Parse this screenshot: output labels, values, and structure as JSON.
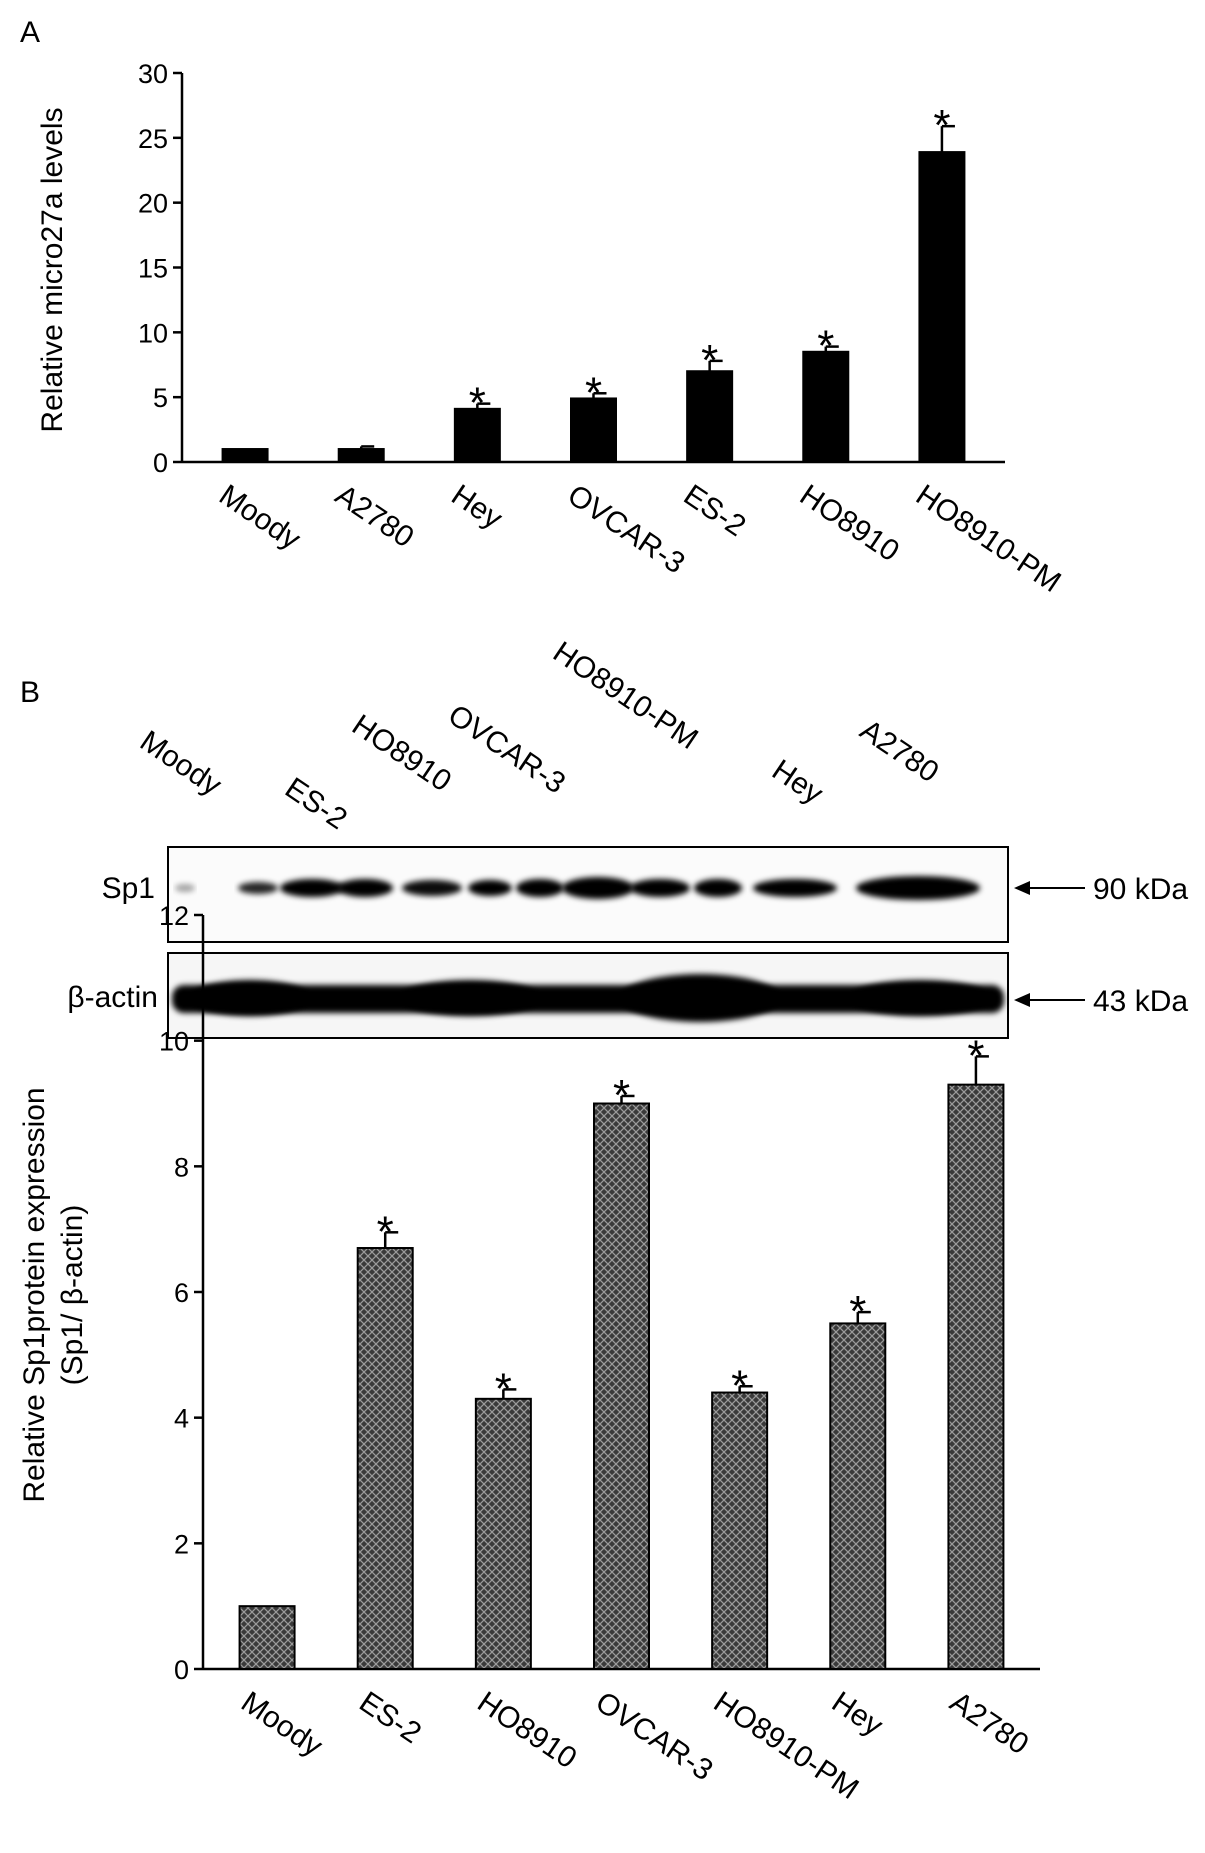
{
  "panels": {
    "a": {
      "letter": "A"
    },
    "b": {
      "letter": "B"
    }
  },
  "blot": {
    "lanes": [
      "Moody",
      "ES-2",
      "HO8910",
      "OVCAR-3",
      "HO8910-PM",
      "Hey",
      "A2780"
    ],
    "rows": [
      {
        "label": "Sp1",
        "size": "90 kDa"
      },
      {
        "label": "β-actin",
        "size": "43 kDa"
      }
    ]
  },
  "colors": {
    "bar_solid": "#000000",
    "bar_hatch_bg": "#3a3a3a",
    "bar_hatch_line": "#9a9a9a"
  },
  "chart_data": [
    {
      "type": "bar",
      "panel": "A",
      "ylabel": "Relative micro27a levels",
      "xlabel": "",
      "ylim": [
        0,
        30
      ],
      "yticks": [
        "0",
        "5",
        "10",
        "15",
        "20",
        "25",
        "30"
      ],
      "categories": [
        "Moody",
        "A2780",
        "Hey",
        "OVCAR-3",
        "ES-2",
        "HO8910",
        "HO8910-PM"
      ],
      "values": [
        1.0,
        1.0,
        4.1,
        4.9,
        7.0,
        8.5,
        23.9
      ],
      "errors": [
        0,
        0.2,
        0.4,
        0.4,
        0.8,
        0.4,
        2.0
      ],
      "significance": [
        "",
        "",
        "*",
        "*",
        "*",
        "*",
        "*"
      ],
      "fill": "solid"
    },
    {
      "type": "bar",
      "panel": "B",
      "ylabel": [
        "Relative Sp1protein expression",
        "(Sp1/  β-actin)"
      ],
      "xlabel": "",
      "ylim": [
        0,
        12
      ],
      "yticks": [
        "0",
        "2",
        "4",
        "6",
        "8",
        "10",
        "12"
      ],
      "categories": [
        "Moody",
        "ES-2",
        "HO8910",
        "OVCAR-3",
        "HO8910-PM",
        "Hey",
        "A2780"
      ],
      "values": [
        1.0,
        6.7,
        4.3,
        9.0,
        4.4,
        5.5,
        9.3
      ],
      "errors": [
        0,
        0.25,
        0.15,
        0.12,
        0.1,
        0.18,
        0.45
      ],
      "significance": [
        "",
        "*",
        "*",
        "*",
        "*",
        "*",
        "*"
      ],
      "fill": "hatched"
    }
  ]
}
